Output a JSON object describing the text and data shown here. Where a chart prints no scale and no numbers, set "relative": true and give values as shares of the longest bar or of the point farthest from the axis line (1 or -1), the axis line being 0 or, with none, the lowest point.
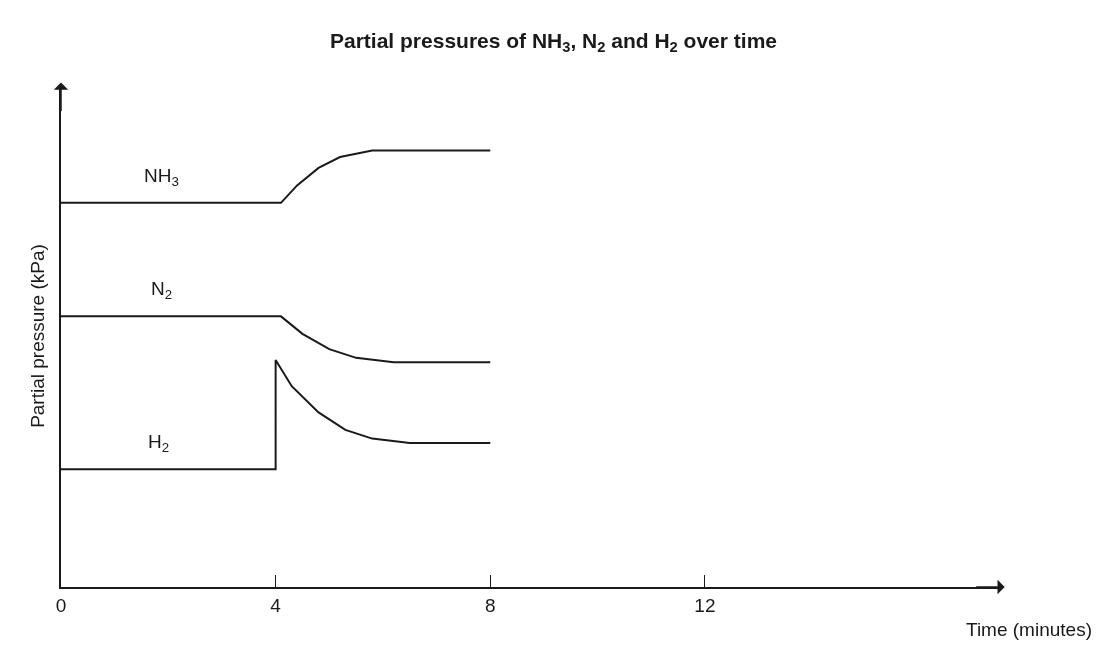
{
  "chart_data": {
    "type": "line",
    "title": "Partial pressures of NH$_{3}$, N$_{2}$ and H$_{2}$ over time",
    "xlabel": "Time (minutes)",
    "ylabel": "Partial pressure (kPa)",
    "relative": true,
    "xlim": [
      0,
      17.5
    ],
    "xticks": [
      0,
      4,
      8,
      12
    ],
    "grid": false,
    "legend": false,
    "marker": "none",
    "line_style": "solid",
    "series": [
      {
        "name": "NH$_{3}$",
        "color": "#1a1a1a",
        "x": [
          0,
          4.1,
          4.4,
          4.8,
          5.2,
          5.8,
          8
        ],
        "values": [
          0.88,
          0.88,
          0.92,
          0.96,
          0.985,
          1.0,
          1.0
        ]
      },
      {
        "name": "N$_{2}$",
        "color": "#1a1a1a",
        "x": [
          0,
          4.1,
          4.5,
          5.0,
          5.5,
          6.2,
          8
        ],
        "values": [
          0.62,
          0.62,
          0.58,
          0.545,
          0.525,
          0.515,
          0.515
        ]
      },
      {
        "name": "H$_{2}$",
        "color": "#1a1a1a",
        "x": [
          0,
          4.0,
          4.0,
          4.3,
          4.8,
          5.3,
          5.8,
          6.5,
          8
        ],
        "values": [
          0.27,
          0.27,
          0.52,
          0.46,
          0.4,
          0.36,
          0.34,
          0.33,
          0.33
        ]
      }
    ]
  }
}
